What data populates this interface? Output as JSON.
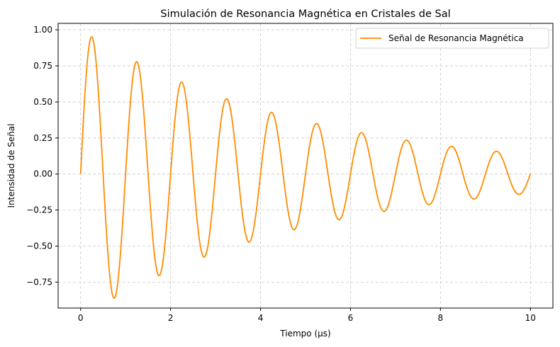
{
  "chart_data": {
    "type": "line",
    "title": "Simulación de Resonancia Magnética en Cristales de Sal",
    "xlabel": "Tiempo (µs)",
    "ylabel": "Intensidad de Señal",
    "xlim": [
      -0.5,
      10.5
    ],
    "ylim": [
      -0.93,
      1.045
    ],
    "x_ticks": [
      0,
      2,
      4,
      6,
      8,
      10
    ],
    "x_tick_labels": [
      "0",
      "2",
      "4",
      "6",
      "8",
      "10"
    ],
    "y_ticks": [
      -0.75,
      -0.5,
      -0.25,
      0.0,
      0.25,
      0.5,
      0.75,
      1.0
    ],
    "y_tick_labels": [
      "−0.75",
      "−0.50",
      "−0.25",
      "0.00",
      "0.25",
      "0.50",
      "0.75",
      "1.00"
    ],
    "grid": true,
    "legend_position": "upper right",
    "series": [
      {
        "name": "Señal de Resonancia Magnética",
        "color": "#ff8c00",
        "function": "exp(-0.2*t) * sin(2*pi*t)",
        "x_range": [
          0,
          10
        ],
        "samples": 1000,
        "key_points": [
          {
            "x": 0.25,
            "y": 0.951
          },
          {
            "x": 0.75,
            "y": -0.861
          },
          {
            "x": 1.25,
            "y": 0.779
          },
          {
            "x": 1.75,
            "y": -0.705
          },
          {
            "x": 2.25,
            "y": 0.638
          },
          {
            "x": 2.75,
            "y": -0.577
          },
          {
            "x": 3.25,
            "y": 0.522
          },
          {
            "x": 3.75,
            "y": -0.472
          },
          {
            "x": 4.25,
            "y": 0.427
          },
          {
            "x": 4.75,
            "y": -0.387
          },
          {
            "x": 5.25,
            "y": 0.35
          },
          {
            "x": 5.75,
            "y": -0.317
          },
          {
            "x": 6.25,
            "y": 0.287
          },
          {
            "x": 6.75,
            "y": -0.259
          },
          {
            "x": 7.25,
            "y": 0.235
          },
          {
            "x": 7.75,
            "y": -0.212
          },
          {
            "x": 8.25,
            "y": 0.192
          },
          {
            "x": 8.75,
            "y": -0.174
          },
          {
            "x": 9.25,
            "y": 0.157
          },
          {
            "x": 9.75,
            "y": -0.142
          },
          {
            "x": 10.0,
            "y": 0.0
          }
        ]
      }
    ]
  },
  "colors": {
    "line": "#ff8c00",
    "grid": "#c8c8c8",
    "axes": "#000000",
    "background": "#ffffff"
  }
}
